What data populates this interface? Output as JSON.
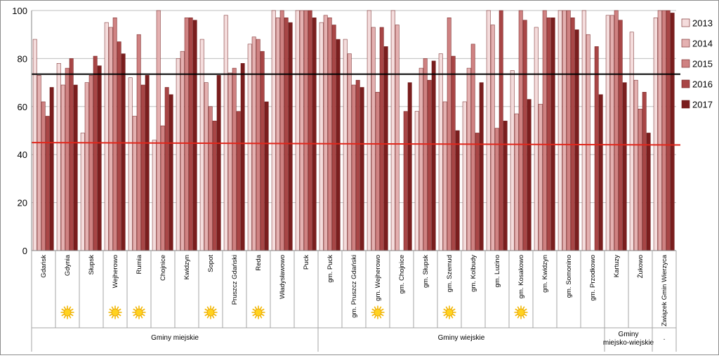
{
  "chart_data": {
    "type": "bar",
    "title": "",
    "xlabel": "",
    "ylabel": "",
    "ylim": [
      0,
      100
    ],
    "yticks": [
      "0",
      "20",
      "40",
      "60",
      "80",
      "100"
    ],
    "legend_position": "right",
    "grid": "horizontal",
    "categories": [
      "Gdańsk",
      "Gdynia",
      "Słupsk",
      "Wejherowo",
      "Rumia",
      "Chojnice",
      "Kwidzyn",
      "Sopot",
      "Pruszcz Gdański",
      "Reda",
      "Władysławowo",
      "Puck",
      "gm. Puck",
      "gm. Pruszcz Gdański",
      "gm. Wejherowo",
      "gm. Chojnice",
      "gm. Słupsk",
      "gm. Szemud",
      "gm. Kolbudy",
      "gm. Luzino",
      "gm. Kosakowo",
      "gm. Kwidzyn",
      "gm. Somonino",
      "gm. Przodkowo",
      "Kartuzy",
      "Żukowo",
      "Związek Gmin Wierzyca"
    ],
    "series": [
      {
        "name": "2013",
        "color": "#f4dcdc",
        "values": [
          88,
          78,
          49,
          95,
          72,
          46,
          80,
          88,
          98,
          86,
          100,
          100,
          95,
          88,
          100,
          100,
          58,
          82,
          62,
          100,
          75,
          93,
          100,
          100,
          98,
          91,
          97
        ]
      },
      {
        "name": "2014",
        "color": "#e4b1b1",
        "values": [
          73,
          69,
          70,
          93,
          56,
          100,
          83,
          70,
          74,
          89,
          97,
          100,
          98,
          82,
          93,
          94,
          76,
          62,
          76,
          94,
          57,
          61,
          100,
          90,
          98,
          71,
          100
        ]
      },
      {
        "name": "2015",
        "color": "#cf8282",
        "values": [
          62,
          76,
          73,
          97,
          90,
          52,
          97,
          60,
          76,
          88,
          100,
          100,
          97,
          69,
          66,
          0,
          80,
          97,
          86,
          51,
          100,
          100,
          100,
          0,
          100,
          59,
          100
        ]
      },
      {
        "name": "2016",
        "color": "#a84646",
        "values": [
          56,
          80,
          81,
          87,
          69,
          68,
          97,
          54,
          58,
          83,
          97,
          100,
          94,
          71,
          93,
          58,
          71,
          81,
          49,
          100,
          96,
          97,
          97,
          85,
          96,
          66,
          100
        ]
      },
      {
        "name": "2017",
        "color": "#7a1e1e",
        "values": [
          68,
          69,
          77,
          82,
          73,
          65,
          96,
          73,
          78,
          62,
          95,
          97,
          88,
          68,
          85,
          70,
          79,
          50,
          70,
          54,
          63,
          97,
          92,
          65,
          70,
          49,
          99
        ]
      }
    ],
    "reference_lines": [
      {
        "color": "#000000",
        "y_start": 73.5,
        "y_end": 73.5
      },
      {
        "color": "#e0261b",
        "y_start": 45,
        "y_end": 44
      }
    ],
    "sun_icon_categories": [
      "Gdynia",
      "Wejherowo",
      "Rumia",
      "Sopot",
      "Reda",
      "gm. Wejherowo",
      "gm. Szemud",
      "gm. Kosakowo"
    ],
    "groups": [
      {
        "label": "Gminy miejskie",
        "start": 0,
        "end": 11
      },
      {
        "label": "Gminy wiejskie",
        "start": 12,
        "end": 23
      },
      {
        "label": "Gminy miejsko-wiejskie",
        "start": 24,
        "end": 25
      },
      {
        "label": ".",
        "start": 26,
        "end": 26
      }
    ]
  }
}
